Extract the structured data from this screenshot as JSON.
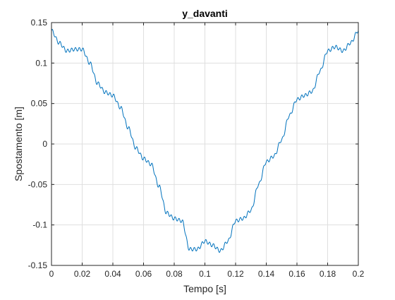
{
  "chart_data": {
    "type": "line",
    "title": "y_davanti",
    "xlabel": "Tempo [s]",
    "ylabel": "Spostamento [m]",
    "xlim": [
      0,
      0.2
    ],
    "ylim": [
      -0.15,
      0.15
    ],
    "grid": true,
    "x_ticks": [
      "0",
      "0.02",
      "0.04",
      "0.06",
      "0.08",
      "0.1",
      "0.12",
      "0.14",
      "0.16",
      "0.18",
      "0.2"
    ],
    "y_ticks": [
      "0.15",
      "0.1",
      "0.05",
      "0",
      "-0.05",
      "-0.1",
      "-0.15"
    ],
    "line_color": "#0072BD",
    "series": [
      {
        "x": [
          0,
          0.005,
          0.01,
          0.015,
          0.02,
          0.025,
          0.03,
          0.035,
          0.04,
          0.045,
          0.05,
          0.055,
          0.06,
          0.065,
          0.07,
          0.075,
          0.08,
          0.085,
          0.09,
          0.095,
          0.1,
          0.105,
          0.11,
          0.115,
          0.12,
          0.125,
          0.13,
          0.135,
          0.14,
          0.145,
          0.15,
          0.155,
          0.16,
          0.165,
          0.17,
          0.175,
          0.18,
          0.185,
          0.19,
          0.195,
          0.2
        ],
        "y": [
          0.14,
          0.125,
          0.115,
          0.117,
          0.117,
          0.1,
          0.075,
          0.064,
          0.06,
          0.045,
          0.02,
          -0.005,
          -0.018,
          -0.025,
          -0.052,
          -0.085,
          -0.092,
          -0.095,
          -0.13,
          -0.13,
          -0.12,
          -0.125,
          -0.132,
          -0.12,
          -0.095,
          -0.092,
          -0.082,
          -0.05,
          -0.022,
          -0.015,
          0.005,
          0.035,
          0.055,
          0.06,
          0.065,
          0.09,
          0.115,
          0.12,
          0.115,
          0.125,
          0.14
        ]
      }
    ]
  }
}
